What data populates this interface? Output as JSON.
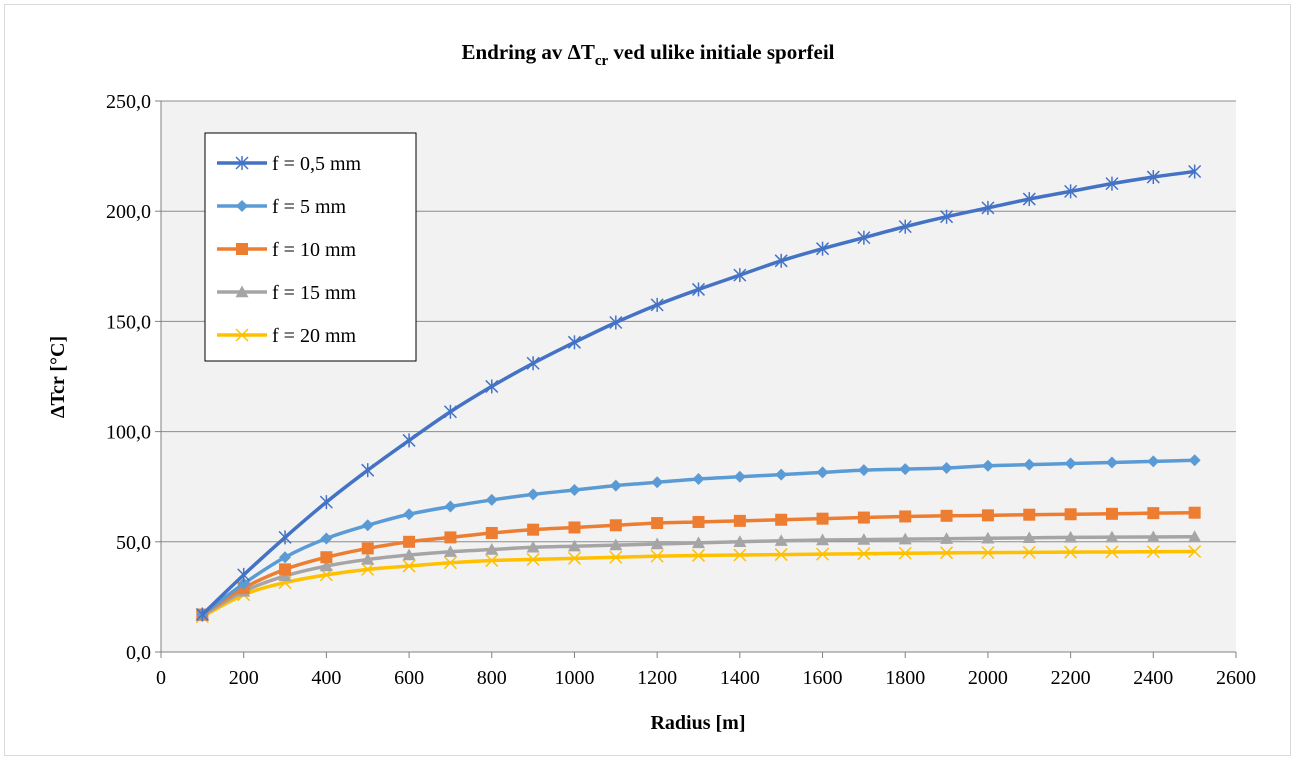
{
  "chart_data": {
    "type": "line",
    "title": {
      "main": "Endring av ΔT",
      "sub": "cr",
      "rest": " ved ulike initiale sporfeil"
    },
    "xlabel": "Radius [m]",
    "ylabel": "ΔTcr [°C]",
    "xlim": [
      0,
      2600
    ],
    "ylim": [
      0,
      250
    ],
    "x_ticks": [
      0,
      200,
      400,
      600,
      800,
      1000,
      1200,
      1400,
      1600,
      1800,
      2000,
      2200,
      2400,
      2600
    ],
    "y_ticks": [
      "0,0",
      "50,0",
      "100,0",
      "150,0",
      "200,0",
      "250,0"
    ],
    "y_tick_values": [
      0,
      50,
      100,
      150,
      200,
      250
    ],
    "grid": "horizontal",
    "legend_position": "top-left",
    "x": [
      100,
      200,
      300,
      400,
      500,
      600,
      700,
      800,
      900,
      1000,
      1100,
      1200,
      1300,
      1400,
      1500,
      1600,
      1700,
      1800,
      1900,
      2000,
      2100,
      2200,
      2300,
      2400,
      2500
    ],
    "series": [
      {
        "name": "f = 0,5 mm",
        "color": "#4472c4",
        "marker": "asterisk",
        "values": [
          17,
          35,
          52,
          68,
          82.5,
          96,
          109,
          120.5,
          131,
          140.5,
          149.5,
          157.5,
          164.5,
          171,
          177.5,
          183,
          188,
          193,
          197.5,
          201.5,
          205.5,
          209,
          212.5,
          215.5,
          218
        ]
      },
      {
        "name": "f = 5 mm",
        "color": "#5b9bd5",
        "marker": "diamond",
        "values": [
          17,
          31,
          43,
          51.5,
          57.5,
          62.5,
          66,
          69,
          71.5,
          73.5,
          75.5,
          77,
          78.5,
          79.5,
          80.5,
          81.5,
          82.5,
          83,
          83.5,
          84.5,
          85,
          85.5,
          86,
          86.5,
          87
        ]
      },
      {
        "name": "f = 10 mm",
        "color": "#ed7d31",
        "marker": "square",
        "values": [
          17,
          29,
          37.5,
          43,
          47,
          50,
          52,
          54,
          55.5,
          56.5,
          57.5,
          58.5,
          59,
          59.5,
          60,
          60.5,
          61,
          61.5,
          61.8,
          62,
          62.3,
          62.5,
          62.7,
          63,
          63.2
        ]
      },
      {
        "name": "f = 15 mm",
        "color": "#a5a5a5",
        "marker": "triangle",
        "values": [
          16.5,
          27.5,
          34.5,
          39,
          42,
          44,
          45.5,
          46.5,
          47.5,
          48,
          48.5,
          49,
          49.5,
          50,
          50.5,
          50.8,
          51,
          51.2,
          51.4,
          51.6,
          51.8,
          52,
          52.1,
          52.2,
          52.3
        ]
      },
      {
        "name": "f = 20 mm",
        "color": "#ffc000",
        "marker": "x",
        "values": [
          16,
          26,
          31.5,
          35,
          37.5,
          39,
          40.5,
          41.5,
          42,
          42.5,
          43,
          43.5,
          43.8,
          44,
          44.2,
          44.4,
          44.6,
          44.8,
          45,
          45.1,
          45.2,
          45.3,
          45.4,
          45.5,
          45.6
        ]
      }
    ]
  }
}
